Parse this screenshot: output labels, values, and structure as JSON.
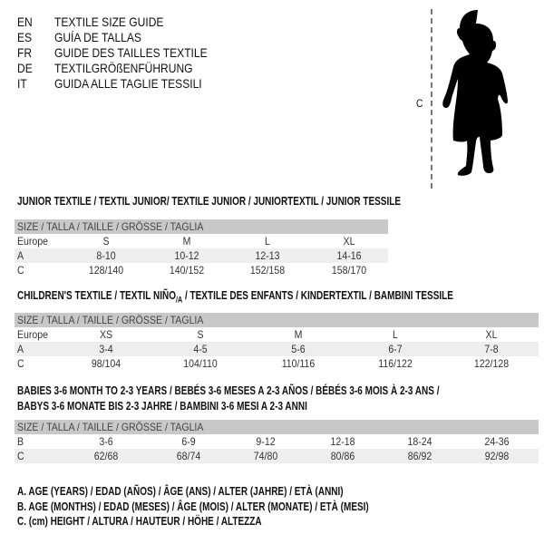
{
  "titles": [
    {
      "code": "EN",
      "text": "TEXTILE SIZE GUIDE"
    },
    {
      "code": "ES",
      "text": "GUÍA DE TALLAS"
    },
    {
      "code": "FR",
      "text": "GUIDE DES TAILLES TEXTILE"
    },
    {
      "code": "DE",
      "text": "TEXTILGRÖßENFÜHRUNG"
    },
    {
      "code": "IT",
      "text": "GUIDA ALLE TAGLIE TESSILI"
    }
  ],
  "figure": {
    "measure_label": "C",
    "icon": "baby-silhouette-icon"
  },
  "size_header": "SIZE / TALLA / TAILLE / GRÖSSE / TAGLIA",
  "junior": {
    "heading": "JUNIOR TEXTILE / TEXTIL JUNIOR/ TEXTILE JUNIOR / JUNIORTEXTIL / JUNIOR TESSILE",
    "rows": [
      {
        "label": "Europe",
        "values": [
          "S",
          "M",
          "L",
          "XL"
        ]
      },
      {
        "label": "A",
        "values": [
          "8-10",
          "10-12",
          "12-13",
          "14-16"
        ]
      },
      {
        "label": "C",
        "values": [
          "128/140",
          "140/152",
          "152/158",
          "158/170"
        ]
      }
    ]
  },
  "children": {
    "heading_pre": "CHILDREN'S TEXTILE / TEXTIL NIÑO",
    "heading_sub": "/A",
    "heading_post": " / TEXTILE DES ENFANTS / KINDERTEXTIL / BAMBINI TESSILE",
    "rows": [
      {
        "label": "Europe",
        "values": [
          "XS",
          "S",
          "M",
          "L",
          "XL"
        ]
      },
      {
        "label": "A",
        "values": [
          "3-4",
          "4-5",
          "5-6",
          "6-7",
          "7-8"
        ]
      },
      {
        "label": "C",
        "values": [
          "98/104",
          "104/110",
          "110/116",
          "116/122",
          "122/128"
        ]
      }
    ]
  },
  "babies": {
    "heading_line1": "BABIES 3-6 MONTH TO 2-3 YEARS / BEBÉS 3-6 MESES A 2-3 AÑOS / BÉBÉS 3-6 MOIS À 2-3 ANS /",
    "heading_line2": "BABYS 3-6 MONATE BIS 2-3 JAHRE / BAMBINI 3-6 MESI A 2-3 ANNI",
    "rows": [
      {
        "label": "B",
        "values": [
          "3-6",
          "6-9",
          "9-12",
          "12-18",
          "18-24",
          "24-36"
        ]
      },
      {
        "label": "C",
        "values": [
          "62/68",
          "68/74",
          "74/80",
          "80/86",
          "86/92",
          "92/98"
        ]
      }
    ]
  },
  "legend": [
    "A. AGE (YEARS) / EDAD (AÑOS) / ÂGE (ANS) / ALTER (JAHRE) / ETÀ (ANNI)",
    "B. AGE (MONTHS) / EDAD (MESES) / ÂGE (MOIS) / ALTER (MONATE) / ETÀ (MESI)",
    "C. (cm) HEIGHT / ALTURA / HAUTEUR / HÖHE / ALTEZZA"
  ]
}
